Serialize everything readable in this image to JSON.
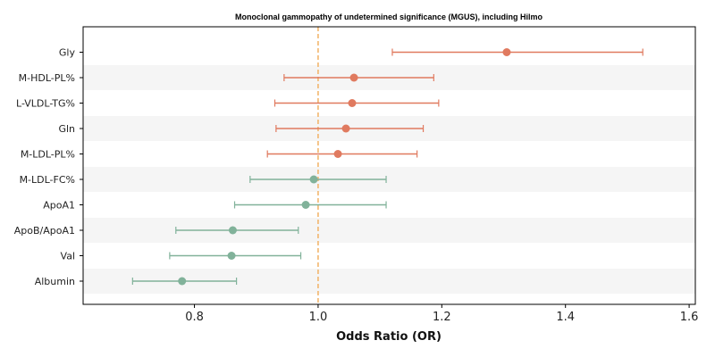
{
  "chart_data": {
    "type": "forest",
    "title": "Monoclonal gammopathy of undetermined significance (MGUS), including Hilmo",
    "xlabel": "Odds Ratio (OR)",
    "ylabel": "",
    "xlim": [
      0.62,
      1.61
    ],
    "xticks": [
      0.8,
      1.0,
      1.2,
      1.4,
      1.6
    ],
    "xtick_labels": [
      "0.8",
      "1.0",
      "1.2",
      "1.4",
      "1.6"
    ],
    "reference_line": 1.0,
    "grid": false,
    "row_banding": true,
    "colors": {
      "increased": "#e07a5f",
      "decreased": "#81b29a",
      "reference": "#f2b66d",
      "band": "#f5f5f5"
    },
    "rows": [
      {
        "label": "Gly",
        "or": 1.305,
        "lower": 1.12,
        "upper": 1.525,
        "direction": "increased"
      },
      {
        "label": "M-HDL-PL%",
        "or": 1.058,
        "lower": 0.945,
        "upper": 1.187,
        "direction": "increased"
      },
      {
        "label": "L-VLDL-TG%",
        "or": 1.055,
        "lower": 0.93,
        "upper": 1.195,
        "direction": "increased"
      },
      {
        "label": "Gln",
        "or": 1.045,
        "lower": 0.932,
        "upper": 1.17,
        "direction": "increased"
      },
      {
        "label": "M-LDL-PL%",
        "or": 1.032,
        "lower": 0.918,
        "upper": 1.16,
        "direction": "increased"
      },
      {
        "label": "M-LDL-FC%",
        "or": 0.993,
        "lower": 0.89,
        "upper": 1.11,
        "direction": "decreased"
      },
      {
        "label": "ApoA1",
        "or": 0.98,
        "lower": 0.865,
        "upper": 1.11,
        "direction": "decreased"
      },
      {
        "label": "ApoB/ApoA1",
        "or": 0.862,
        "lower": 0.77,
        "upper": 0.968,
        "direction": "decreased"
      },
      {
        "label": "Val",
        "or": 0.86,
        "lower": 0.76,
        "upper": 0.972,
        "direction": "decreased"
      },
      {
        "label": "Albumin",
        "or": 0.78,
        "lower": 0.7,
        "upper": 0.868,
        "direction": "decreased"
      }
    ]
  }
}
